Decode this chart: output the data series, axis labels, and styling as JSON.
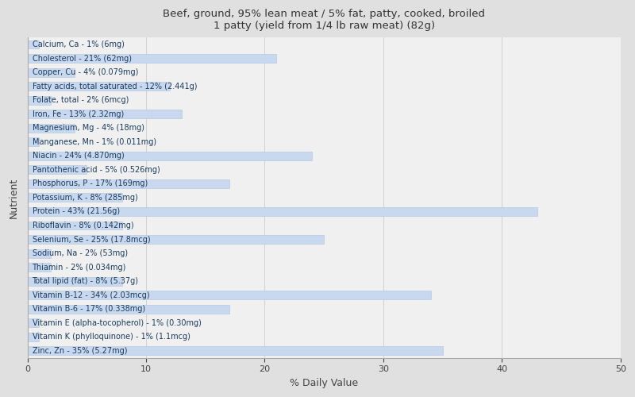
{
  "title": "Beef, ground, 95% lean meat / 5% fat, patty, cooked, broiled\n1 patty (yield from 1/4 lb raw meat) (82g)",
  "xlabel": "% Daily Value",
  "ylabel": "Nutrient",
  "background_color": "#e0e0e0",
  "plot_bg_color": "#f0f0f0",
  "bar_color": "#c8d8ee",
  "bar_edge_color": "#b0c4de",
  "text_color": "#1a3a5c",
  "xlim": [
    0,
    50
  ],
  "title_fontsize": 9.5,
  "label_fontsize": 7.0,
  "nutrients": [
    {
      "label": "Calcium, Ca - 1% (6mg)",
      "value": 1
    },
    {
      "label": "Cholesterol - 21% (62mg)",
      "value": 21
    },
    {
      "label": "Copper, Cu - 4% (0.079mg)",
      "value": 4
    },
    {
      "label": "Fatty acids, total saturated - 12% (2.441g)",
      "value": 12
    },
    {
      "label": "Folate, total - 2% (6mcg)",
      "value": 2
    },
    {
      "label": "Iron, Fe - 13% (2.32mg)",
      "value": 13
    },
    {
      "label": "Magnesium, Mg - 4% (18mg)",
      "value": 4
    },
    {
      "label": "Manganese, Mn - 1% (0.011mg)",
      "value": 1
    },
    {
      "label": "Niacin - 24% (4.870mg)",
      "value": 24
    },
    {
      "label": "Pantothenic acid - 5% (0.526mg)",
      "value": 5
    },
    {
      "label": "Phosphorus, P - 17% (169mg)",
      "value": 17
    },
    {
      "label": "Potassium, K - 8% (285mg)",
      "value": 8
    },
    {
      "label": "Protein - 43% (21.56g)",
      "value": 43
    },
    {
      "label": "Riboflavin - 8% (0.142mg)",
      "value": 8
    },
    {
      "label": "Selenium, Se - 25% (17.8mcg)",
      "value": 25
    },
    {
      "label": "Sodium, Na - 2% (53mg)",
      "value": 2
    },
    {
      "label": "Thiamin - 2% (0.034mg)",
      "value": 2
    },
    {
      "label": "Total lipid (fat) - 8% (5.37g)",
      "value": 8
    },
    {
      "label": "Vitamin B-12 - 34% (2.03mcg)",
      "value": 34
    },
    {
      "label": "Vitamin B-6 - 17% (0.338mg)",
      "value": 17
    },
    {
      "label": "Vitamin E (alpha-tocopherol) - 1% (0.30mg)",
      "value": 1
    },
    {
      "label": "Vitamin K (phylloquinone) - 1% (1.1mcg)",
      "value": 1
    },
    {
      "label": "Zinc, Zn - 35% (5.27mg)",
      "value": 35
    }
  ]
}
